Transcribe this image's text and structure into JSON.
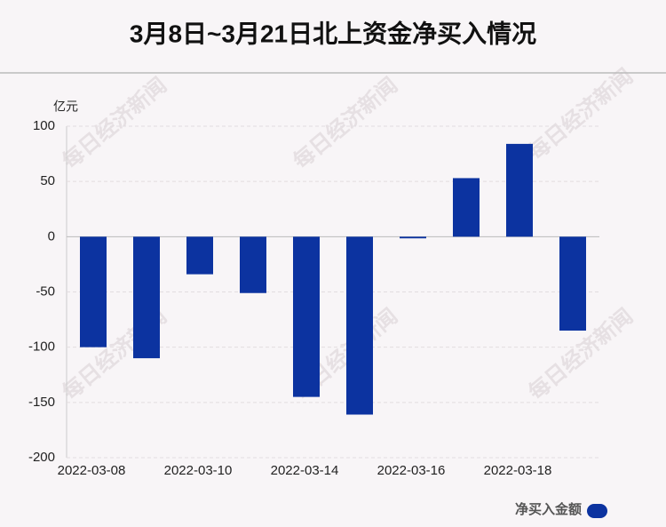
{
  "chart_data": {
    "type": "bar",
    "title": "3月8日~3月21日北上资金净买入情况",
    "y_label": "亿元",
    "watermark": "每日经济新闻",
    "categories": [
      "2022-03-08",
      null,
      "2022-03-10",
      null,
      "2022-03-14",
      null,
      "2022-03-16",
      null,
      "2022-03-18",
      null
    ],
    "series": [
      {
        "name": "净买入金额",
        "color": "#0c33a0",
        "values": [
          -100,
          -110,
          -34,
          -51,
          -145,
          -161,
          -1.5,
          53,
          84,
          -85
        ]
      }
    ],
    "ylim": [
      -200,
      100
    ],
    "yticks": [
      -200,
      -150,
      -100,
      -50,
      0,
      50,
      100
    ],
    "grid": true,
    "legend": "bottom-right"
  }
}
